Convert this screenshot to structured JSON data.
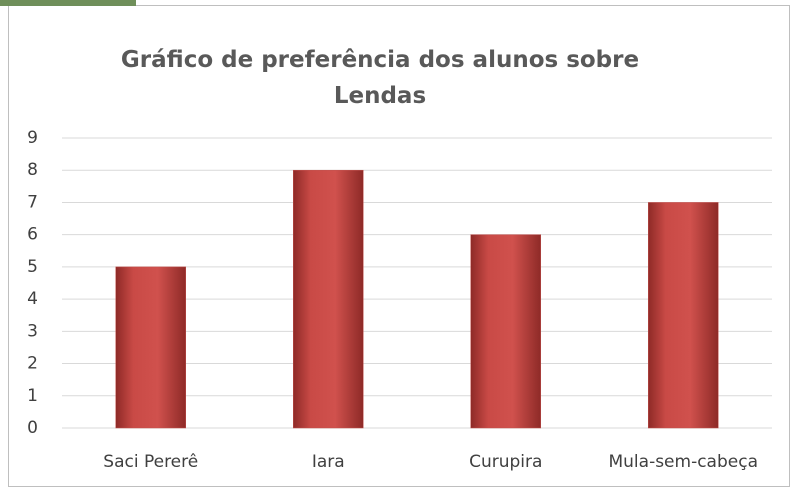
{
  "chart_data": {
    "type": "bar",
    "title": "Gráfico de preferência dos alunos sobre Lendas",
    "categories": [
      "Saci Pererê",
      "Iara",
      "Curupira",
      "Mula-sem-cabeça"
    ],
    "values": [
      5,
      8,
      6,
      7
    ],
    "color": "#c0504d",
    "ylim": [
      0,
      9
    ],
    "yticks": [
      0,
      1,
      2,
      3,
      4,
      5,
      6,
      7,
      8,
      9
    ],
    "grid": true
  }
}
